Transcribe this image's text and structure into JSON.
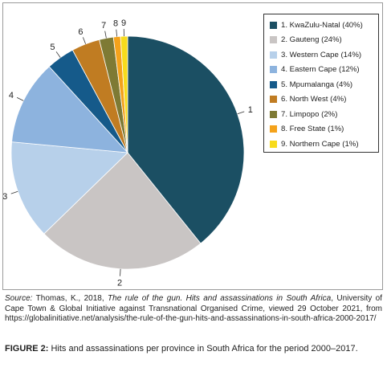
{
  "chart_data": {
    "type": "pie",
    "start": "top",
    "direction": "clockwise",
    "slices": [
      {
        "label": "1",
        "legend": "1. KwaZulu-Natal (40%)",
        "value": 40,
        "color": "#1b4f63"
      },
      {
        "label": "2",
        "legend": "2. Gauteng (24%)",
        "value": 24,
        "color": "#c9c5c4"
      },
      {
        "label": "3",
        "legend": "3. Western Cape (14%)",
        "value": 14,
        "color": "#b7d0ea"
      },
      {
        "label": "4",
        "legend": "4. Eastern Cape (12%)",
        "value": 12,
        "color": "#8db3de"
      },
      {
        "label": "5",
        "legend": "5. Mpumalanga (4%)",
        "value": 4,
        "color": "#155a8a"
      },
      {
        "label": "6",
        "legend": "6. North West (4%)",
        "value": 4,
        "color": "#c07c22"
      },
      {
        "label": "7",
        "legend": "7. Limpopo (2%)",
        "value": 2,
        "color": "#7e7a34"
      },
      {
        "label": "8",
        "legend": "8. Free State (1%)",
        "value": 1,
        "color": "#f4a21b"
      },
      {
        "label": "9",
        "legend": "9. Northern Cape (1%)",
        "value": 1,
        "color": "#f7db1c"
      }
    ],
    "legend_position": "top-right"
  },
  "source": {
    "label": "Source:",
    "text_before": " Thomas, K., 2018, ",
    "title_italic": "The rule of the gun. Hits and assassinations in South Africa",
    "text_after": ", University of Cape Town & Global Initiative against Transnational Organised Crime, viewed 29 October 2021, from https://globalinitiative.net/analysis/the-rule-of-the-gun-hits-and-assassinations-in-south-africa-2000-2017/"
  },
  "caption": {
    "label": "FIGURE 2:",
    "text": " Hits and assassinations per province in South Africa for the period 2000–2017."
  }
}
